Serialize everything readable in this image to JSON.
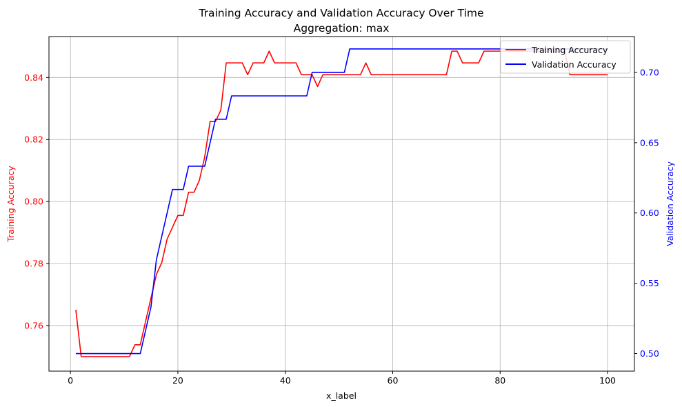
{
  "chart_data": {
    "type": "line",
    "title": "Training Accuracy and Validation Accuracy Over Time",
    "subtitle": "Aggregation: max",
    "xlabel": "x_label",
    "ylabel_left": "Training Accuracy",
    "ylabel_right": "Validation Accuracy",
    "xlim": [
      -4,
      105
    ],
    "ylim_left": [
      0.7453,
      0.8532
    ],
    "ylim_right": [
      0.4875,
      0.7255
    ],
    "x_ticks": [
      0,
      20,
      40,
      60,
      80,
      100
    ],
    "y_ticks_left": [
      0.76,
      0.78,
      0.8,
      0.82,
      0.84
    ],
    "y_ticks_left_labels": [
      "0.76",
      "0.78",
      "0.80",
      "0.82",
      "0.84"
    ],
    "y_ticks_right": [
      0.5,
      0.55,
      0.6,
      0.65,
      0.7
    ],
    "y_ticks_right_labels": [
      "0.50",
      "0.55",
      "0.60",
      "0.65",
      "0.70"
    ],
    "grid": true,
    "legend_position": "top-right",
    "colors": {
      "training": "#ff0000",
      "validation": "#0000ff",
      "grid": "#b0b0b0"
    },
    "series": [
      {
        "name": "Training Accuracy",
        "axis": "left",
        "color": "#ff0000",
        "points": [
          [
            1,
            0.7651
          ],
          [
            2,
            0.75
          ],
          [
            11,
            0.75
          ],
          [
            12,
            0.7538
          ],
          [
            13,
            0.7538
          ],
          [
            14,
            0.7614
          ],
          [
            15,
            0.7689
          ],
          [
            16,
            0.7765
          ],
          [
            17,
            0.7803
          ],
          [
            18,
            0.7879
          ],
          [
            19,
            0.7917
          ],
          [
            20,
            0.7955
          ],
          [
            21,
            0.7955
          ],
          [
            22,
            0.803
          ],
          [
            23,
            0.803
          ],
          [
            24,
            0.8068
          ],
          [
            25,
            0.8144
          ],
          [
            26,
            0.8258
          ],
          [
            27,
            0.8258
          ],
          [
            28,
            0.8295
          ],
          [
            29,
            0.8447
          ],
          [
            32,
            0.8447
          ],
          [
            33,
            0.8409
          ],
          [
            34,
            0.8447
          ],
          [
            36,
            0.8447
          ],
          [
            37,
            0.8485
          ],
          [
            38,
            0.8447
          ],
          [
            42,
            0.8447
          ],
          [
            43,
            0.8409
          ],
          [
            45,
            0.8409
          ],
          [
            46,
            0.8371
          ],
          [
            47,
            0.8409
          ],
          [
            54,
            0.8409
          ],
          [
            55,
            0.8447
          ],
          [
            56,
            0.8409
          ],
          [
            70,
            0.8409
          ],
          [
            71,
            0.8485
          ],
          [
            72,
            0.8485
          ],
          [
            73,
            0.8447
          ],
          [
            76,
            0.8447
          ],
          [
            77,
            0.8485
          ],
          [
            92,
            0.8485
          ],
          [
            93,
            0.8409
          ],
          [
            100,
            0.8409
          ]
        ]
      },
      {
        "name": "Validation Accuracy",
        "axis": "right",
        "color": "#0000ff",
        "points": [
          [
            1,
            0.5
          ],
          [
            13,
            0.5
          ],
          [
            15,
            0.5333
          ],
          [
            16,
            0.5667
          ],
          [
            19,
            0.6167
          ],
          [
            21,
            0.6167
          ],
          [
            22,
            0.6333
          ],
          [
            25,
            0.6333
          ],
          [
            27,
            0.6667
          ],
          [
            29,
            0.6667
          ],
          [
            30,
            0.6833
          ],
          [
            44,
            0.6833
          ],
          [
            45,
            0.7
          ],
          [
            51,
            0.7
          ],
          [
            52,
            0.7167
          ],
          [
            100,
            0.7167
          ]
        ]
      }
    ]
  }
}
